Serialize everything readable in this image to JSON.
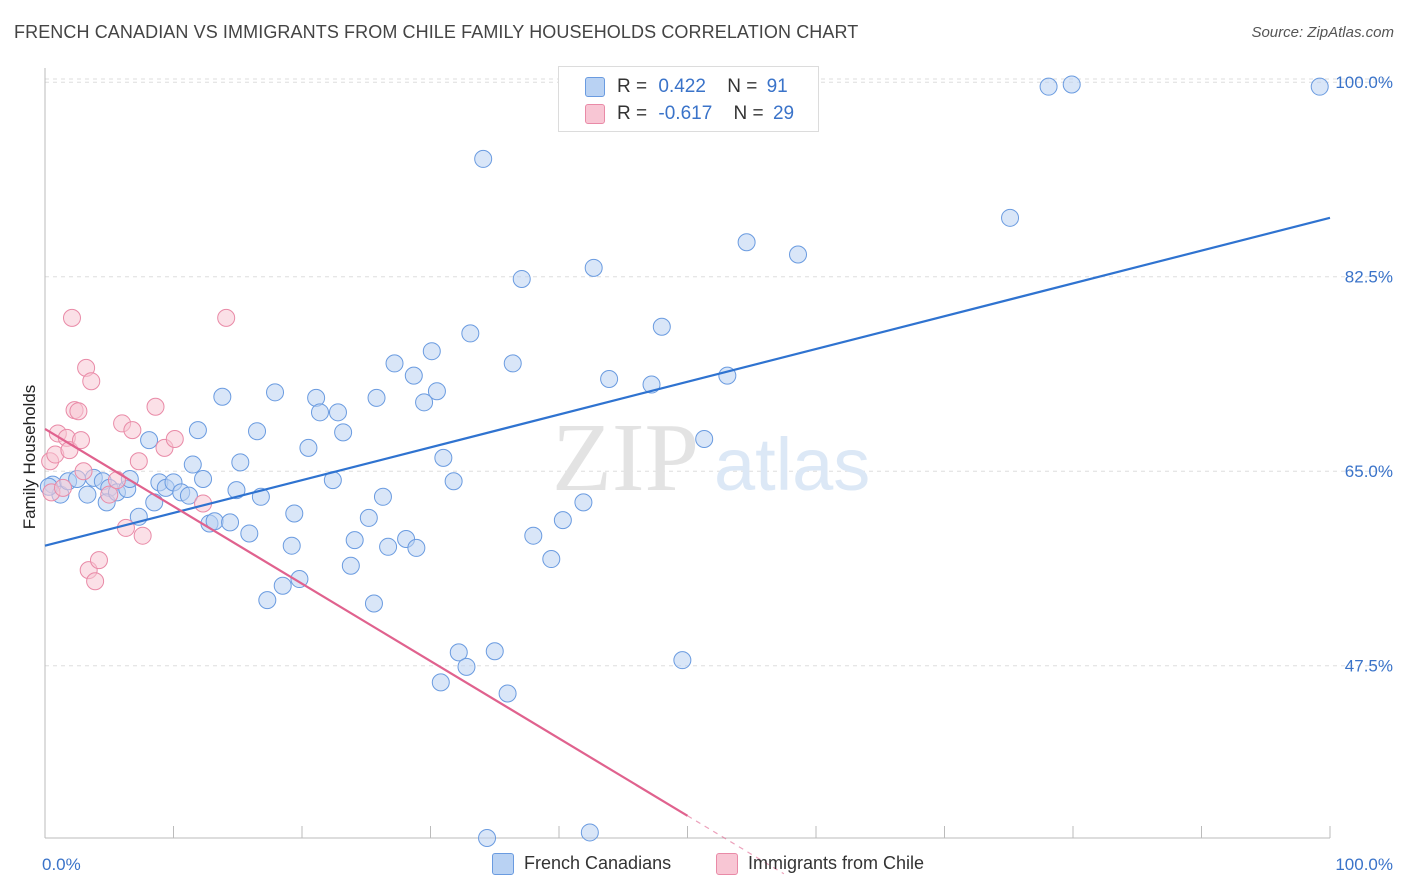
{
  "header": {
    "title": "FRENCH CANADIAN VS IMMIGRANTS FROM CHILE FAMILY HOUSEHOLDS CORRELATION CHART",
    "source": "Source: ZipAtlas.com"
  },
  "watermark": {
    "zip": "ZIP",
    "atlas": "atlas"
  },
  "legend": {
    "series": [
      {
        "name": "French Canadians",
        "r_label": "R =",
        "r_value": "0.422",
        "n_label": "N =",
        "n_value": "91",
        "fill": "#b9d2f3",
        "stroke": "#6a9be0"
      },
      {
        "name": "Immigrants from Chile",
        "r_label": "R =",
        "r_value": "-0.617",
        "n_label": "N =",
        "n_value": "29",
        "fill": "#f8c6d4",
        "stroke": "#e98aa7"
      }
    ]
  },
  "colors": {
    "blue_line": "#2f73d0",
    "pink_line": "#e0628e",
    "axis_label": "#3a73c9",
    "grid": "#dddddd"
  },
  "chart_data": {
    "type": "scatter",
    "title": "FRENCH CANADIAN VS IMMIGRANTS FROM CHILE FAMILY HOUSEHOLDS CORRELATION CHART",
    "xlabel": "",
    "ylabel": "Family Households",
    "xlim": [
      0,
      100
    ],
    "ylim": [
      32,
      102
    ],
    "x_tick_labels": [
      "0.0%",
      "100.0%"
    ],
    "y_ticks": [
      100,
      82.5,
      65,
      47.5
    ],
    "y_tick_labels": [
      "100.0%",
      "82.5%",
      "65.0%",
      "47.5%"
    ],
    "grid": true,
    "legend_position": "top-center",
    "series": [
      {
        "name": "French Canadians",
        "trend": {
          "x": [
            0,
            100
          ],
          "y": [
            58.3,
            87.8
          ]
        },
        "points": [
          [
            0.6,
            63.8
          ],
          [
            1.2,
            62.9
          ],
          [
            1.8,
            64.1
          ],
          [
            2.5,
            64.3
          ],
          [
            3.3,
            62.9
          ],
          [
            3.8,
            64.4
          ],
          [
            4.5,
            64.1
          ],
          [
            5.0,
            63.5
          ],
          [
            4.8,
            62.2
          ],
          [
            5.6,
            63.1
          ],
          [
            6.4,
            63.4
          ],
          [
            6.6,
            64.3
          ],
          [
            7.3,
            60.9
          ],
          [
            8.1,
            67.8
          ],
          [
            8.5,
            62.2
          ],
          [
            8.9,
            64.0
          ],
          [
            9.4,
            63.5
          ],
          [
            10.0,
            64.0
          ],
          [
            10.6,
            63.1
          ],
          [
            11.2,
            62.8
          ],
          [
            11.5,
            65.6
          ],
          [
            11.9,
            68.7
          ],
          [
            12.3,
            64.3
          ],
          [
            12.8,
            60.3
          ],
          [
            13.2,
            60.5
          ],
          [
            13.8,
            71.7
          ],
          [
            14.4,
            60.4
          ],
          [
            14.9,
            63.3
          ],
          [
            15.2,
            65.8
          ],
          [
            15.9,
            59.4
          ],
          [
            16.5,
            68.6
          ],
          [
            16.8,
            62.7
          ],
          [
            17.3,
            53.4
          ],
          [
            17.9,
            72.1
          ],
          [
            18.5,
            54.7
          ],
          [
            19.2,
            58.3
          ],
          [
            19.4,
            61.2
          ],
          [
            19.8,
            55.3
          ],
          [
            20.5,
            67.1
          ],
          [
            21.1,
            71.6
          ],
          [
            21.4,
            70.3
          ],
          [
            22.4,
            64.2
          ],
          [
            22.8,
            70.3
          ],
          [
            23.2,
            68.5
          ],
          [
            23.8,
            56.5
          ],
          [
            24.1,
            58.8
          ],
          [
            25.2,
            60.8
          ],
          [
            25.6,
            53.1
          ],
          [
            25.8,
            71.6
          ],
          [
            26.3,
            62.7
          ],
          [
            26.7,
            58.2
          ],
          [
            27.2,
            74.7
          ],
          [
            28.1,
            58.9
          ],
          [
            28.7,
            73.6
          ],
          [
            28.9,
            58.1
          ],
          [
            29.5,
            71.2
          ],
          [
            30.1,
            75.8
          ],
          [
            30.5,
            72.2
          ],
          [
            30.8,
            46.0
          ],
          [
            31.0,
            66.2
          ],
          [
            31.8,
            64.1
          ],
          [
            32.2,
            48.7
          ],
          [
            32.8,
            47.4
          ],
          [
            33.1,
            77.4
          ],
          [
            34.1,
            93.1
          ],
          [
            34.4,
            32.0
          ],
          [
            35.0,
            48.8
          ],
          [
            36.0,
            45.0
          ],
          [
            36.4,
            74.7
          ],
          [
            37.1,
            82.3
          ],
          [
            38.0,
            59.2
          ],
          [
            39.4,
            57.1
          ],
          [
            40.3,
            60.6
          ],
          [
            41.9,
            62.2
          ],
          [
            42.4,
            32.5
          ],
          [
            42.7,
            83.3
          ],
          [
            43.9,
            73.3
          ],
          [
            47.2,
            72.8
          ],
          [
            48.0,
            78.0
          ],
          [
            49.6,
            48.0
          ],
          [
            51.0,
            99.8
          ],
          [
            51.3,
            67.9
          ],
          [
            53.1,
            73.6
          ],
          [
            54.6,
            85.6
          ],
          [
            58.0,
            99.6
          ],
          [
            58.6,
            84.5
          ],
          [
            75.1,
            87.8
          ],
          [
            78.1,
            99.6
          ],
          [
            79.9,
            99.8
          ],
          [
            99.2,
            99.6
          ],
          [
            0.3,
            63.6
          ]
        ]
      },
      {
        "name": "Immigrants from Chile",
        "trend": {
          "x": [
            0,
            50
          ],
          "y": [
            68.8,
            34.0
          ]
        },
        "points": [
          [
            0.4,
            65.9
          ],
          [
            0.5,
            63.1
          ],
          [
            0.8,
            66.5
          ],
          [
            1.0,
            68.4
          ],
          [
            1.4,
            63.5
          ],
          [
            1.7,
            68.0
          ],
          [
            1.9,
            66.9
          ],
          [
            2.1,
            78.8
          ],
          [
            2.3,
            70.5
          ],
          [
            2.6,
            70.4
          ],
          [
            2.8,
            67.8
          ],
          [
            3.0,
            65.0
          ],
          [
            3.2,
            74.3
          ],
          [
            3.4,
            56.1
          ],
          [
            3.6,
            73.1
          ],
          [
            3.9,
            55.1
          ],
          [
            4.2,
            57.0
          ],
          [
            5.0,
            62.9
          ],
          [
            5.6,
            64.2
          ],
          [
            6.0,
            69.3
          ],
          [
            6.3,
            59.9
          ],
          [
            6.8,
            68.7
          ],
          [
            7.3,
            65.9
          ],
          [
            7.6,
            59.2
          ],
          [
            8.6,
            70.8
          ],
          [
            9.3,
            67.1
          ],
          [
            10.1,
            67.9
          ],
          [
            12.3,
            62.1
          ],
          [
            14.1,
            78.8
          ]
        ]
      }
    ]
  }
}
